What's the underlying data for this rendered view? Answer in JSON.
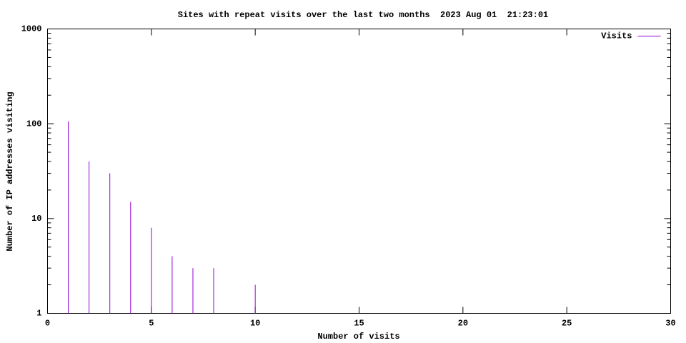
{
  "chart_data": {
    "type": "impulse",
    "title": "Sites with repeat visits over the last two months  2023 Aug 01  21:23:01",
    "x_label": "Number of visits",
    "y_label": "Number of IP addresses visiting",
    "x": [
      1,
      2,
      3,
      4,
      5,
      6,
      7,
      8,
      10
    ],
    "series": [
      {
        "name": "Visits",
        "color": "#9400d3",
        "values": [
          106,
          40,
          30,
          15,
          8,
          4,
          3,
          3,
          2
        ]
      }
    ],
    "xlim": [
      0,
      30
    ],
    "xticks": [
      0,
      5,
      10,
      15,
      20,
      25,
      30
    ],
    "ylim": [
      1,
      1000
    ],
    "yticks": [
      1,
      10,
      100,
      1000
    ],
    "ylog": true,
    "yminor": true,
    "legend": "top-right"
  }
}
